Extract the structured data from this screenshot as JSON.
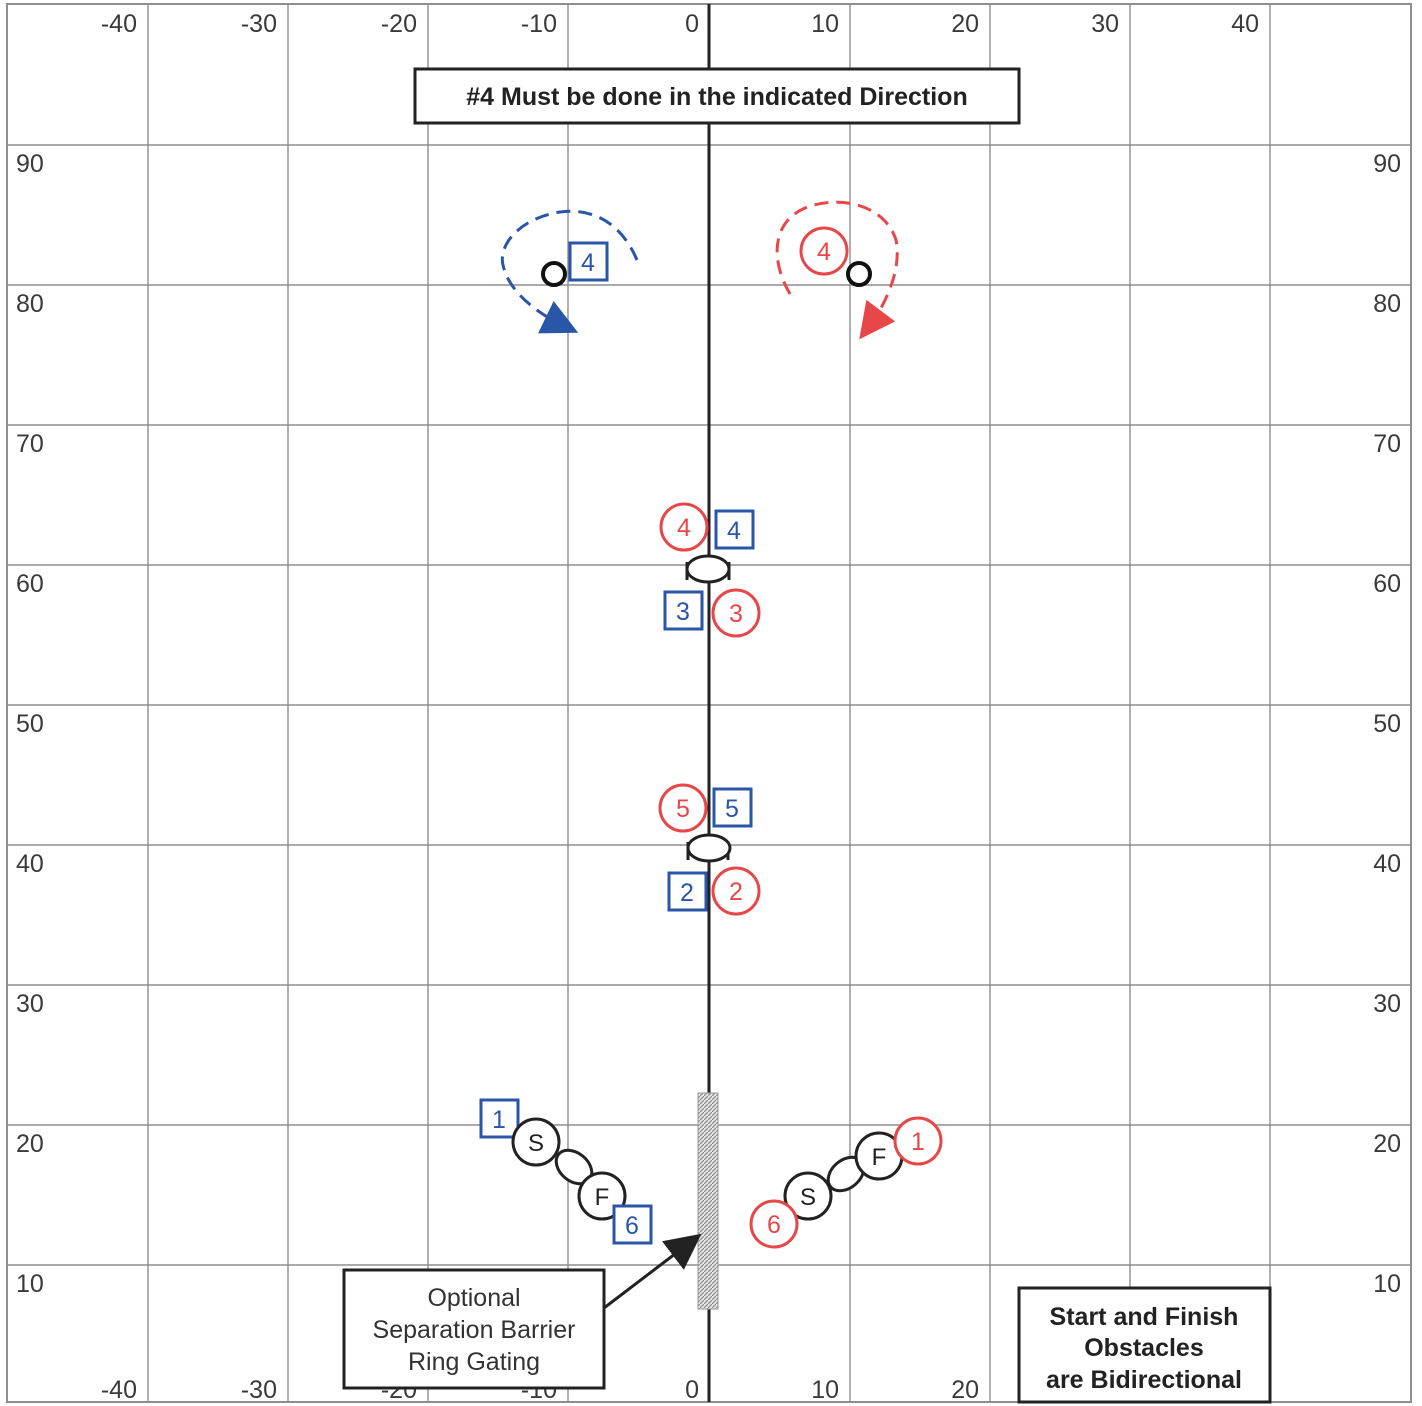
{
  "axis_ticks": {
    "top_x": [
      "-40",
      "-30",
      "-20",
      "-10",
      "0",
      "10",
      "20",
      "30",
      "40"
    ],
    "bottom_x": [
      "-40",
      "-30",
      "-20",
      "-10",
      "0",
      "10",
      "20"
    ],
    "left_y": [
      "90",
      "80",
      "70",
      "60",
      "50",
      "40",
      "30",
      "20",
      "10"
    ],
    "right_y": [
      "90",
      "80",
      "70",
      "60",
      "50",
      "40",
      "30",
      "20",
      "10"
    ]
  },
  "title_box": {
    "text": "#4 Must be done in the indicated Direction"
  },
  "barrier_callout": {
    "line1": "Optional",
    "line2": "Separation Barrier",
    "line3": "Ring Gating"
  },
  "bidirectional_note": {
    "line1": "Start and Finish",
    "line2": "Obstacles",
    "line3": "are Bidirectional"
  },
  "markers": {
    "blue_square": [
      "4",
      "4",
      "3",
      "5",
      "2",
      "1",
      "6"
    ],
    "red_circle": [
      "4",
      "4",
      "3",
      "5",
      "2",
      "1",
      "6"
    ]
  },
  "obstacle_labels": {
    "start": "S",
    "finish": "F"
  },
  "colors": {
    "blue": "#2a56a8",
    "red": "#e8474a",
    "grid": "#8e8e8e",
    "centerline": "#222222"
  }
}
